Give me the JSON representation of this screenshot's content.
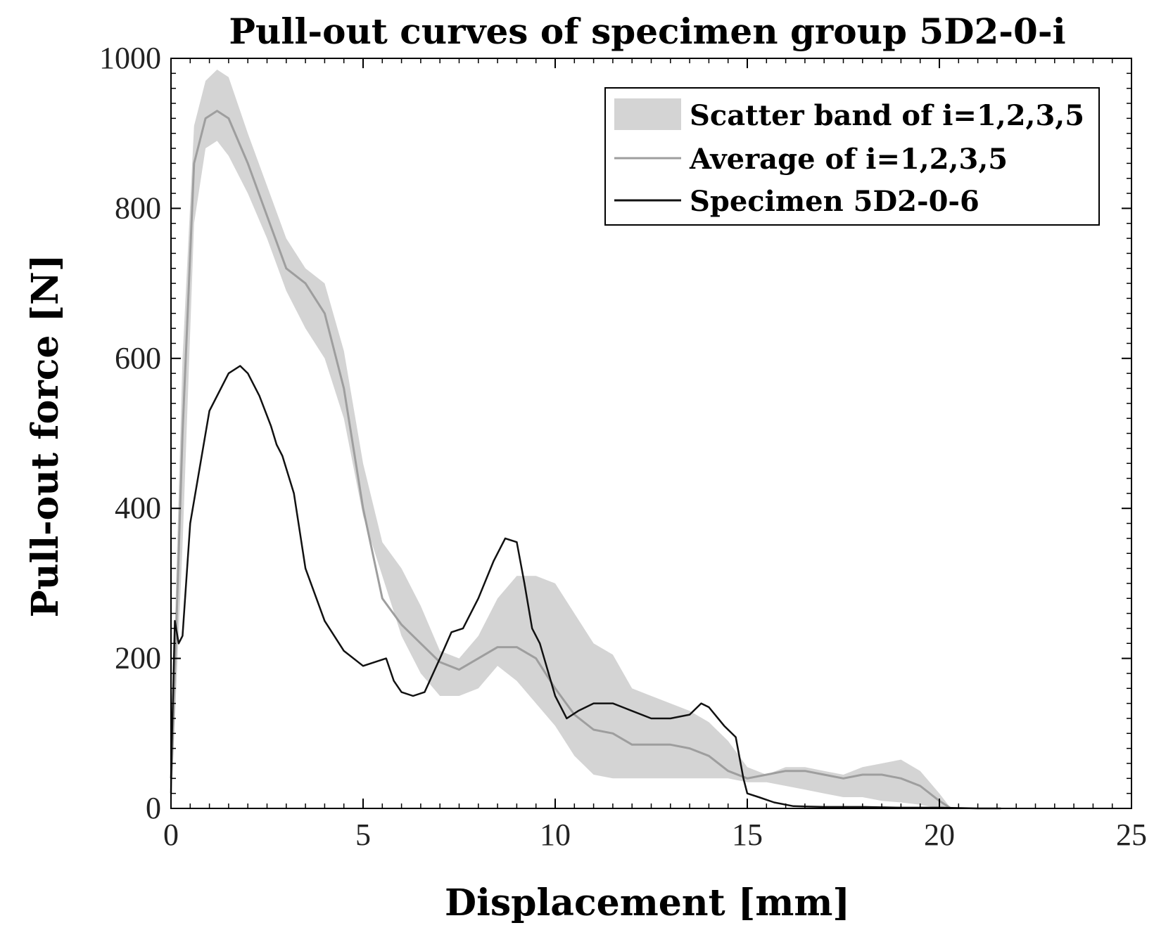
{
  "chart_data": {
    "type": "line",
    "title": "Pull-out curves of specimen group 5D2-0-i",
    "xlabel": "Displacement [mm]",
    "ylabel": "Pull-out force [N]",
    "xlim": [
      0,
      25
    ],
    "ylim": [
      0,
      1000
    ],
    "xticks": [
      "0",
      "5",
      "10",
      "15",
      "20",
      "25"
    ],
    "yticks": [
      "0",
      "200",
      "400",
      "600",
      "800",
      "1000"
    ],
    "grid": false,
    "legend_position": "top-right",
    "colors": {
      "band": "#d4d4d4",
      "average": "#9e9e9e",
      "specimen": "#111111"
    },
    "series": [
      {
        "name": "Scatter band of i=1,2,3,5",
        "kind": "band",
        "x": [
          0,
          0.3,
          0.6,
          0.9,
          1.2,
          1.5,
          2.0,
          2.5,
          3.0,
          3.5,
          4.0,
          4.5,
          5.0,
          5.5,
          6.0,
          6.5,
          7.0,
          7.5,
          8.0,
          8.5,
          9.0,
          9.5,
          10.0,
          10.5,
          11.0,
          11.5,
          12.0,
          12.5,
          13.0,
          13.5,
          14.0,
          14.5,
          15.0,
          15.5,
          16.0,
          16.5,
          17.0,
          17.5,
          18.0,
          18.5,
          19.0,
          19.5,
          20.0,
          20.3
        ],
        "upper": [
          60,
          600,
          910,
          970,
          985,
          975,
          900,
          830,
          760,
          720,
          700,
          610,
          460,
          355,
          320,
          270,
          210,
          200,
          230,
          280,
          310,
          310,
          300,
          260,
          220,
          205,
          160,
          150,
          140,
          130,
          115,
          90,
          55,
          45,
          55,
          55,
          50,
          45,
          55,
          60,
          65,
          50,
          20,
          0
        ],
        "lower": [
          0,
          350,
          780,
          880,
          890,
          870,
          820,
          760,
          690,
          640,
          600,
          520,
          390,
          310,
          230,
          180,
          150,
          150,
          160,
          190,
          170,
          140,
          110,
          70,
          45,
          40,
          40,
          40,
          40,
          40,
          40,
          40,
          35,
          35,
          30,
          25,
          20,
          15,
          15,
          10,
          8,
          5,
          0,
          0
        ]
      },
      {
        "name": "Average of i=1,2,3,5",
        "kind": "line",
        "x": [
          0,
          0.3,
          0.6,
          0.9,
          1.2,
          1.5,
          2.0,
          2.5,
          3.0,
          3.5,
          4.0,
          4.5,
          5.0,
          5.5,
          6.0,
          6.5,
          7.0,
          7.5,
          8.0,
          8.5,
          9.0,
          9.5,
          10.0,
          10.5,
          11.0,
          11.5,
          12.0,
          12.5,
          13.0,
          13.5,
          14.0,
          14.5,
          15.0,
          15.5,
          16.0,
          16.5,
          17.0,
          17.5,
          18.0,
          18.5,
          19.0,
          19.5,
          20.0,
          20.3
        ],
        "y": [
          20,
          500,
          860,
          920,
          930,
          920,
          860,
          790,
          720,
          700,
          660,
          560,
          400,
          280,
          245,
          220,
          195,
          185,
          200,
          215,
          215,
          200,
          160,
          125,
          105,
          100,
          85,
          85,
          85,
          80,
          70,
          50,
          40,
          45,
          50,
          50,
          45,
          40,
          45,
          45,
          40,
          30,
          10,
          0
        ]
      },
      {
        "name": "Specimen 5D2-0-6",
        "kind": "line",
        "x": [
          0,
          0.1,
          0.15,
          0.2,
          0.3,
          0.5,
          1.0,
          1.5,
          1.8,
          2.0,
          2.3,
          2.6,
          2.75,
          2.9,
          3.2,
          3.5,
          4.0,
          4.5,
          5.0,
          5.3,
          5.6,
          5.8,
          6.0,
          6.3,
          6.6,
          7.0,
          7.3,
          7.6,
          8.0,
          8.4,
          8.7,
          9.0,
          9.2,
          9.4,
          9.6,
          10.0,
          10.3,
          10.6,
          11.0,
          11.5,
          12.0,
          12.5,
          13.0,
          13.5,
          13.8,
          14.0,
          14.4,
          14.7,
          14.9,
          15.0,
          15.3,
          15.7,
          16.2,
          17.0,
          18.0,
          19.0,
          20.0,
          21.0,
          21.6
        ],
        "y": [
          40,
          250,
          235,
          220,
          230,
          380,
          530,
          580,
          590,
          580,
          550,
          510,
          485,
          470,
          420,
          320,
          250,
          210,
          190,
          195,
          200,
          170,
          155,
          150,
          155,
          200,
          235,
          240,
          280,
          330,
          360,
          355,
          300,
          240,
          220,
          150,
          120,
          130,
          140,
          140,
          130,
          120,
          120,
          125,
          140,
          135,
          110,
          95,
          40,
          20,
          15,
          8,
          3,
          2,
          2,
          1,
          1,
          0,
          0
        ]
      }
    ]
  }
}
